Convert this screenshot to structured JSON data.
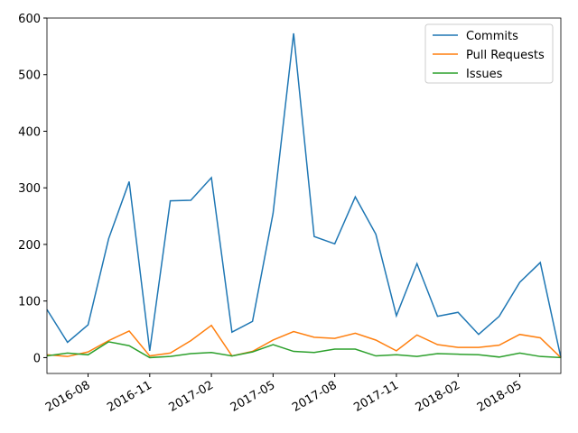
{
  "chart_data": {
    "type": "line",
    "x": [
      "2016-06",
      "2016-07",
      "2016-08",
      "2016-09",
      "2016-10",
      "2016-11",
      "2016-12",
      "2017-01",
      "2017-02",
      "2017-03",
      "2017-04",
      "2017-05",
      "2017-06",
      "2017-07",
      "2017-08",
      "2017-09",
      "2017-10",
      "2017-11",
      "2017-12",
      "2018-01",
      "2018-02",
      "2018-03",
      "2018-04",
      "2018-05",
      "2018-06",
      "2018-07"
    ],
    "series": [
      {
        "name": "Commits",
        "color": "#1f77b4",
        "values": [
          85,
          27,
          58,
          210,
          311,
          12,
          277,
          278,
          318,
          45,
          64,
          255,
          573,
          214,
          201,
          284,
          218,
          74,
          166,
          73,
          80,
          41,
          73,
          133,
          168,
          0
        ]
      },
      {
        "name": "Pull Requests",
        "color": "#ff7f0e",
        "values": [
          5,
          2,
          10,
          30,
          47,
          3,
          8,
          30,
          57,
          3,
          11,
          31,
          46,
          36,
          34,
          43,
          31,
          12,
          40,
          23,
          18,
          18,
          22,
          41,
          35,
          0
        ]
      },
      {
        "name": "Issues",
        "color": "#2ca02c",
        "values": [
          3,
          8,
          5,
          28,
          21,
          0,
          2,
          7,
          9,
          3,
          10,
          23,
          11,
          9,
          15,
          15,
          3,
          5,
          2,
          7,
          6,
          5,
          1,
          8,
          2,
          0
        ]
      }
    ],
    "xlim": [
      "2016-06",
      "2018-07"
    ],
    "xticks": [
      "2016-08",
      "2016-11",
      "2017-02",
      "2017-05",
      "2017-08",
      "2017-11",
      "2018-02",
      "2018-05"
    ],
    "ylim": [
      -28,
      600
    ],
    "yticks": [
      0,
      100,
      200,
      300,
      400,
      500,
      600
    ],
    "legend": "upper right"
  }
}
